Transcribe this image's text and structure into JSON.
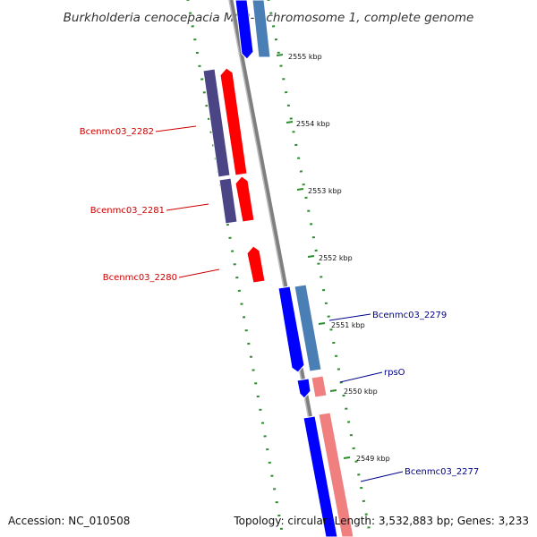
{
  "title": "Burkholderia cenocepacia MC0-3 chromosome 1, complete genome",
  "footer": {
    "accession": "Accession: NC_010508",
    "summary": "Topology: circular; Length: 3,532,883 bp; Genes: 3,233"
  },
  "colors": {
    "backbone": "#7f7f7f",
    "tick": "#2e8b2e",
    "forward_cds": "#ff0000",
    "forward_gene": "#4b4585",
    "reverse_cds": "#0000ff",
    "reverse_gene": "#4a7fb5",
    "reverse_light": "#f08080",
    "forward_label": "#cc0000",
    "reverse_label": "#00008b"
  },
  "ticks": [
    {
      "label": "2555 kbp"
    },
    {
      "label": "2554 kbp"
    },
    {
      "label": "2553 kbp"
    },
    {
      "label": "2552 kbp"
    },
    {
      "label": "2551 kbp"
    },
    {
      "label": "2550 kbp"
    },
    {
      "label": "2549 kbp"
    }
  ],
  "genes": [
    {
      "name": "Bcenmc03_2282",
      "strand": "forward"
    },
    {
      "name": "Bcenmc03_2281",
      "strand": "forward"
    },
    {
      "name": "Bcenmc03_2280",
      "strand": "forward"
    },
    {
      "name": "Bcenmc03_2279",
      "strand": "reverse"
    },
    {
      "name": "rpsO",
      "strand": "reverse"
    },
    {
      "name": "Bcenmc03_2277",
      "strand": "reverse"
    }
  ]
}
